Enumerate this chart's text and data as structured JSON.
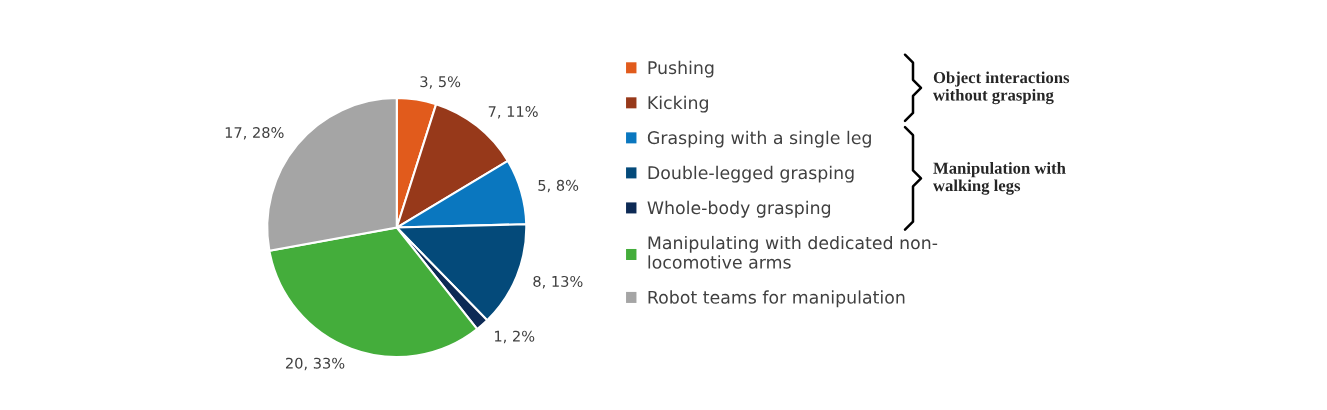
{
  "chart_data": {
    "type": "pie",
    "categories": [
      "Pushing",
      "Kicking",
      "Grasping with a single leg",
      "Double-legged grasping",
      "Whole-body grasping",
      "Manipulating with dedicated non-\nlocomotive arms",
      "Robot teams for manipulation"
    ],
    "values": [
      3,
      7,
      5,
      8,
      1,
      20,
      17
    ],
    "colors": [
      "#e15b1c",
      "#97391a",
      "#0a77bf",
      "#044a7a",
      "#0d2a55",
      "#44ad3b",
      "#a5a5a5"
    ],
    "value_labels": [
      "3, 5%",
      "7, 11%",
      "5, 8%",
      "8, 13%",
      "1, 2%",
      "20, 33%",
      "17, 28%"
    ],
    "annotations": [
      "Object interactions\nwithout grasping",
      "Manipulation with\nwalking legs"
    ],
    "legend": "right"
  }
}
